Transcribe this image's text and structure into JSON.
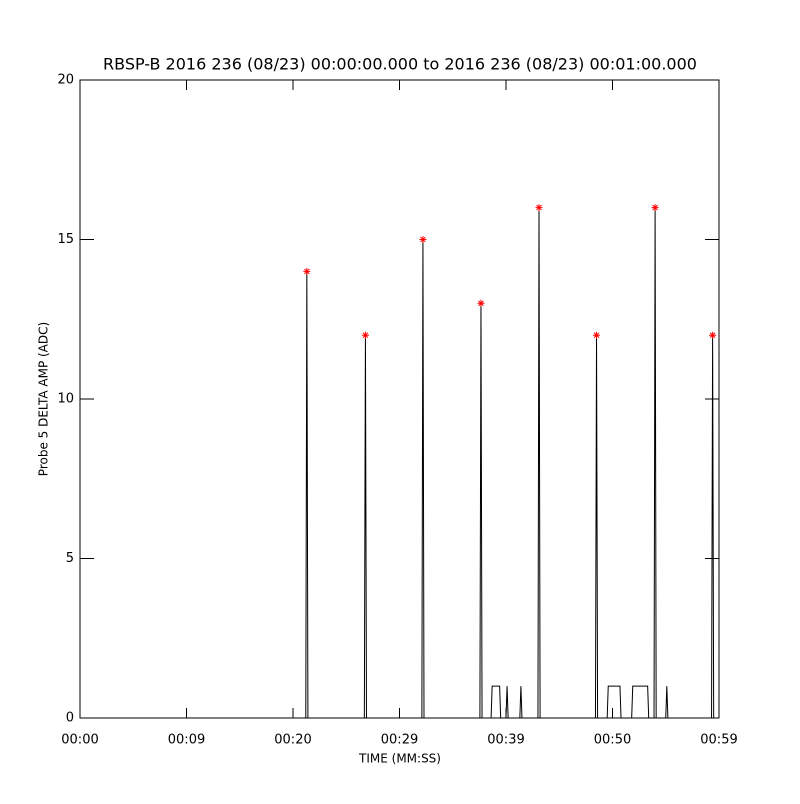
{
  "chart_data": {
    "type": "line",
    "title": "RBSP-B 2016 236 (08/23) 00:00:00.000 to 2016 236 (08/23) 00:01:00.000",
    "x_label": "TIME (MM:SS)",
    "y_label": "Probe 5 DELTA AMP (ADC)",
    "xlim": [
      0,
      60
    ],
    "ylim": [
      0,
      20
    ],
    "xticks": [
      {
        "value": 0,
        "label": "00:00"
      },
      {
        "value": 10,
        "label": "00:09"
      },
      {
        "value": 20,
        "label": "00:20"
      },
      {
        "value": 30,
        "label": "00:29"
      },
      {
        "value": 40,
        "label": "00:39"
      },
      {
        "value": 50,
        "label": "00:50"
      },
      {
        "value": 60,
        "label": "00:59"
      }
    ],
    "yticks": [
      0,
      5,
      10,
      15,
      20
    ],
    "series": [
      {
        "color": "#000000",
        "x": [
          0,
          21.2,
          21.3,
          21.4,
          26.7,
          26.8,
          26.9,
          32.1,
          32.2,
          32.3,
          37.55,
          37.65,
          37.75,
          38.6,
          38.7,
          39.4,
          39.5,
          40.0,
          40.1,
          40.2,
          41.3,
          41.4,
          41.5,
          43.0,
          43.1,
          43.2,
          48.4,
          48.5,
          48.6,
          49.5,
          49.6,
          50.7,
          50.8,
          51.8,
          51.9,
          53.3,
          53.4,
          53.9,
          54.0,
          54.1,
          55.0,
          55.1,
          55.2,
          59.3,
          59.4,
          59.5,
          60
        ],
        "values": [
          0,
          0,
          14,
          0,
          0,
          12,
          0,
          0,
          15,
          0,
          0,
          13,
          0,
          0,
          1,
          1,
          0,
          0,
          1,
          0,
          0,
          1,
          0,
          0,
          16,
          0,
          0,
          12,
          0,
          0,
          1,
          1,
          0,
          0,
          1,
          1,
          0,
          0,
          16,
          0,
          0,
          1,
          0,
          0,
          12,
          0,
          0
        ]
      },
      {
        "color": "#ff0000",
        "marker": "asterisk",
        "x": [
          21.3,
          26.8,
          32.2,
          37.65,
          43.1,
          48.5,
          54.0,
          59.4
        ],
        "values": [
          14,
          12,
          15,
          13,
          16,
          12,
          16,
          12
        ]
      }
    ]
  }
}
